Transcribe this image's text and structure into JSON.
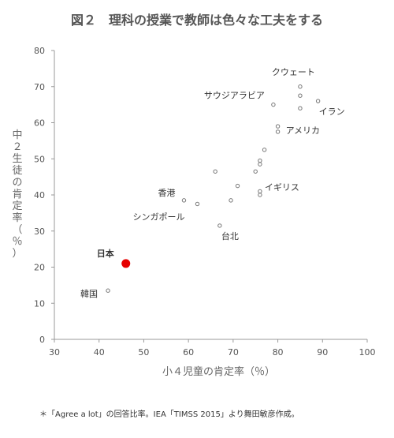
{
  "title": "図２　理科の授業で教師は色々な工夫をする",
  "note": "＊「Agree a lot」の回答比率。IEA「TIMSS 2015」より舞田敏彦作成。",
  "chart_data": {
    "type": "scatter",
    "title": "図２　理科の授業で教師は色々な工夫をする",
    "xlabel": "小４児童の肯定率（％）",
    "ylabel": "中２生徒の肯定率（％）",
    "xlim": [
      30,
      100
    ],
    "ylim": [
      0,
      80
    ],
    "xticks": [
      30,
      40,
      50,
      60,
      70,
      80,
      90,
      100
    ],
    "yticks": [
      0,
      10,
      20,
      30,
      40,
      50,
      60,
      70,
      80
    ],
    "grid": false,
    "points": [
      {
        "x": 46,
        "y": 21,
        "label": "日本",
        "highlight": true
      },
      {
        "x": 42,
        "y": 13.5,
        "label": "韓国"
      },
      {
        "x": 59,
        "y": 38.5,
        "label": "香港"
      },
      {
        "x": 62,
        "y": 37.5,
        "label": "シンガポール"
      },
      {
        "x": 67,
        "y": 31.5,
        "label": "台北"
      },
      {
        "x": 76,
        "y": 40,
        "label": "イギリス"
      },
      {
        "x": 80,
        "y": 57.5,
        "label": "アメリカ"
      },
      {
        "x": 89,
        "y": 66,
        "label": "イラン"
      },
      {
        "x": 79,
        "y": 65,
        "label": "サウジアラビア"
      },
      {
        "x": 85,
        "y": 70,
        "label": "クウェート"
      },
      {
        "x": 66,
        "y": 46.5,
        "label": ""
      },
      {
        "x": 69.5,
        "y": 38.5,
        "label": ""
      },
      {
        "x": 71,
        "y": 42.5,
        "label": ""
      },
      {
        "x": 75,
        "y": 46.5,
        "label": ""
      },
      {
        "x": 76,
        "y": 48.5,
        "label": ""
      },
      {
        "x": 76,
        "y": 49.5,
        "label": ""
      },
      {
        "x": 76,
        "y": 41,
        "label": ""
      },
      {
        "x": 77,
        "y": 52.5,
        "label": ""
      },
      {
        "x": 80,
        "y": 59,
        "label": ""
      },
      {
        "x": 85,
        "y": 67.5,
        "label": ""
      },
      {
        "x": 85,
        "y": 64,
        "label": ""
      }
    ],
    "colors": {
      "highlight": "#e60000",
      "marker_edge": "#777777",
      "label_highlight": "#e60000"
    }
  }
}
